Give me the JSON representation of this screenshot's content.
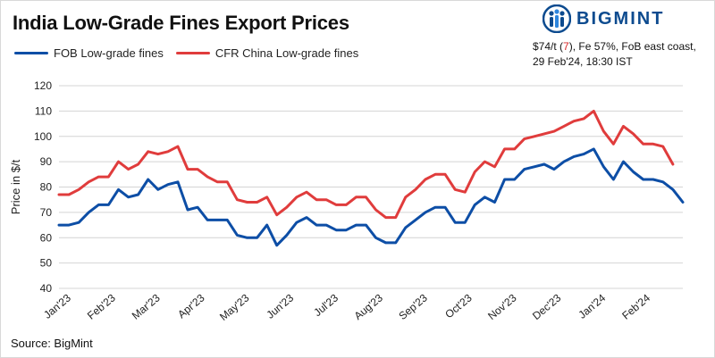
{
  "header": {
    "title": "India Low-Grade Fines Export Prices",
    "logo_text": "BIGMINT",
    "note_prefix": "$74/t (",
    "note_change": "7",
    "note_suffix": "), Fe 57%, FoB east coast,",
    "note_line2": "29 Feb'24, 18:30 IST"
  },
  "source": "Source: BigMint",
  "colors": {
    "fob": "#0d4ea6",
    "cfr": "#e03c3c",
    "brand": "#0d4b8f"
  },
  "chart_data": {
    "type": "line",
    "title": "India Low-Grade Fines Export Prices",
    "ylabel": "Price in $/t",
    "xlabel": "",
    "ylim": [
      40,
      120
    ],
    "yticks": [
      40,
      50,
      60,
      70,
      80,
      90,
      100,
      110,
      120
    ],
    "grid": true,
    "legend": "top-left",
    "month_labels": [
      {
        "label": "Jan'23",
        "x": 0
      },
      {
        "label": "Feb'23",
        "x": 4.5
      },
      {
        "label": "Mar'23",
        "x": 9
      },
      {
        "label": "Apr'23",
        "x": 13.5
      },
      {
        "label": "May'23",
        "x": 18
      },
      {
        "label": "Jun'23",
        "x": 22.5
      },
      {
        "label": "Jul'23",
        "x": 27
      },
      {
        "label": "Aug'23",
        "x": 31.5
      },
      {
        "label": "Sep'23",
        "x": 36
      },
      {
        "label": "Oct'23",
        "x": 40.5
      },
      {
        "label": "Nov'23",
        "x": 45
      },
      {
        "label": "Dec'23",
        "x": 49.5
      },
      {
        "label": "Jan'24",
        "x": 54
      },
      {
        "label": "Feb'24",
        "x": 58.5
      }
    ],
    "series": [
      {
        "name": "FOB Low-grade fines",
        "color": "#0d4ea6",
        "values": [
          65,
          65,
          66,
          70,
          73,
          73,
          79,
          76,
          77,
          83,
          79,
          81,
          82,
          71,
          72,
          67,
          67,
          67,
          61,
          60,
          60,
          65,
          57,
          61,
          66,
          68,
          65,
          65,
          63,
          63,
          65,
          65,
          60,
          58,
          58,
          64,
          67,
          70,
          72,
          72,
          66,
          66,
          73,
          76,
          74,
          83,
          83,
          87,
          88,
          89,
          87,
          90,
          92,
          93,
          95,
          88,
          83,
          90,
          86,
          83,
          83,
          82,
          79,
          74
        ]
      },
      {
        "name": "CFR China Low-grade fines",
        "color": "#e03c3c",
        "values": [
          77,
          77,
          79,
          82,
          84,
          84,
          90,
          87,
          89,
          94,
          93,
          94,
          96,
          87,
          87,
          84,
          82,
          82,
          75,
          74,
          74,
          76,
          69,
          72,
          76,
          78,
          75,
          75,
          73,
          73,
          76,
          76,
          71,
          68,
          68,
          76,
          79,
          83,
          85,
          85,
          79,
          78,
          86,
          90,
          88,
          95,
          95,
          99,
          100,
          101,
          102,
          104,
          106,
          107,
          110,
          102,
          97,
          104,
          101,
          97,
          97,
          96,
          89
        ]
      }
    ]
  }
}
